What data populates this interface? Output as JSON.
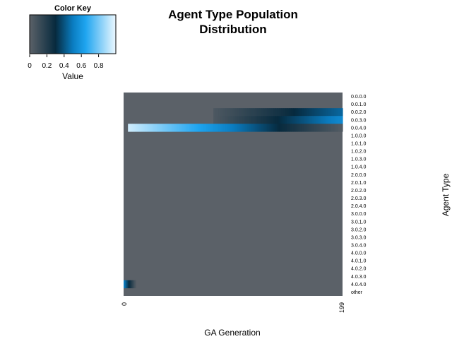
{
  "chart_data": {
    "type": "heatmap",
    "title_lines": [
      "Agent Type Population",
      "Distribution"
    ],
    "xlabel": "GA Generation",
    "ylabel": "Agent Type",
    "x_tick_labels": [
      "0",
      "199"
    ],
    "x_range": [
      0,
      199
    ],
    "rows": [
      "0.0.0.0",
      "0.0.1.0",
      "0.0.2.0",
      "0.0.3.0",
      "0.0.4.0",
      "1.0.0.0",
      "1.0.1.0",
      "1.0.2.0",
      "1.0.3.0",
      "1.0.4.0",
      "2.0.0.0",
      "2.0.1.0",
      "2.0.2.0",
      "2.0.3.0",
      "2.0.4.0",
      "3.0.0.0",
      "3.0.1.0",
      "3.0.2.0",
      "3.0.3.0",
      "3.0.4.0",
      "4.0.0.0",
      "4.0.1.0",
      "4.0.2.0",
      "4.0.3.0",
      "4.0.4.0",
      "other"
    ],
    "value_range": [
      0,
      1
    ],
    "nonzero_segments": [
      {
        "row": "0.0.2.0",
        "from_gen": 82,
        "to_gen": 199,
        "start_value": 0.05,
        "end_value": 0.45
      },
      {
        "row": "0.0.3.0",
        "from_gen": 82,
        "to_gen": 199,
        "start_value": 0.05,
        "end_value": 0.55
      },
      {
        "row": "0.0.4.0",
        "from_gen": 4,
        "to_gen": 199,
        "start_value": 0.95,
        "end_value": 0.03
      },
      {
        "row": "4.0.4.0",
        "from_gen": 0,
        "to_gen": 10,
        "start_value": 0.5,
        "end_value": 0.05
      }
    ],
    "color_key": {
      "title": "Color Key",
      "label": "Value",
      "ticks": [
        "0",
        "0.2",
        "0.4",
        "0.6",
        "0.8"
      ],
      "stops": [
        {
          "value": 0.0,
          "color": "#5b6168"
        },
        {
          "value": 0.3,
          "color": "#072a3e"
        },
        {
          "value": 0.5,
          "color": "#0a7cc0"
        },
        {
          "value": 0.65,
          "color": "#1fa5f0"
        },
        {
          "value": 1.0,
          "color": "#ecf8ff"
        }
      ]
    }
  }
}
